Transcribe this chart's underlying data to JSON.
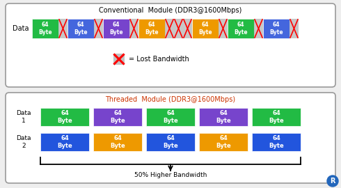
{
  "title_conventional": "Conventional  Module (DDR3@1600Mbps)",
  "title_threaded": "Threaded  Module (DDR3@1600Mbps)",
  "conv_colors": [
    "#22bb44",
    "#4466dd",
    "#7744cc",
    "#ee9900",
    "#ee9900",
    "#22bb44",
    "#4466dd",
    "#7744cc"
  ],
  "thread1_colors": [
    "#22bb44",
    "#7744cc",
    "#22bb44",
    "#7744cc",
    "#22bb44"
  ],
  "thread2_colors": [
    "#2255dd",
    "#ee9900",
    "#2255dd",
    "#ee9900",
    "#2255dd"
  ],
  "box_label": "64\nByte",
  "lost_bw_label": "= Lost Bandwidth",
  "higher_bw_label": "50% Higher Bandwidth",
  "data_label": "Data",
  "data1_label": "Data\n1",
  "data2_label": "Data\n2",
  "bg_color": "#eeeeee",
  "title_conv_color": "#000000",
  "title_thread_color": "#cc3300",
  "border_color": "#aaaaaa",
  "x_marker_color": "#999999"
}
